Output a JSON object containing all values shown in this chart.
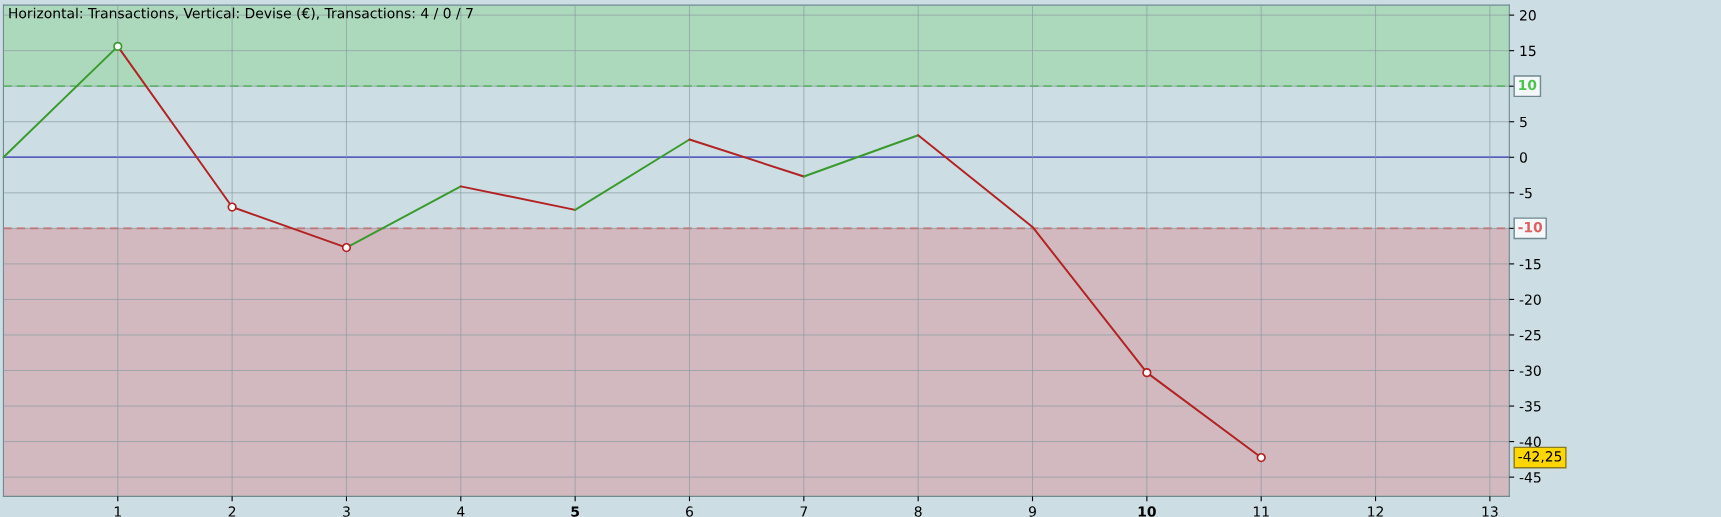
{
  "chart_data": {
    "type": "line",
    "title": "Horizontal: Transactions, Vertical: Devise (€), Transactions: 4 / 0 / 7",
    "series": [
      {
        "x": [
          0,
          1
        ],
        "values": [
          0,
          15.6
        ],
        "color": "#3a9a2e"
      },
      {
        "x": [
          1,
          2,
          3
        ],
        "values": [
          15.6,
          -7.0,
          -12.7
        ],
        "color": "#b22222"
      },
      {
        "x": [
          3,
          4
        ],
        "values": [
          -12.7,
          -4.1
        ],
        "color": "#3a9a2e"
      },
      {
        "x": [
          4,
          5
        ],
        "values": [
          -4.1,
          -7.4
        ],
        "color": "#b22222"
      },
      {
        "x": [
          5,
          6
        ],
        "values": [
          -7.4,
          2.5
        ],
        "color": "#3a9a2e"
      },
      {
        "x": [
          6,
          7
        ],
        "values": [
          2.5,
          -2.7
        ],
        "color": "#b22222"
      },
      {
        "x": [
          7,
          8
        ],
        "values": [
          -2.7,
          3.1
        ],
        "color": "#3a9a2e"
      },
      {
        "x": [
          8,
          9,
          10,
          11
        ],
        "values": [
          3.1,
          -9.8,
          -30.3,
          -42.25
        ],
        "color": "#b22222"
      },
      {
        "type": "scatter",
        "x": [
          1,
          2,
          3,
          10,
          11
        ],
        "values": [
          15.6,
          -7.0,
          -12.7,
          -30.3,
          -42.25
        ],
        "colors": [
          "#3a9a2e",
          "#b22222",
          "#b22222",
          "#b22222",
          "#b22222"
        ],
        "marker": "circle"
      }
    ],
    "xlim": [
      0,
      13.17
    ],
    "xticks": [
      1,
      2,
      3,
      4,
      5,
      6,
      7,
      8,
      9,
      10,
      11,
      12,
      13
    ],
    "ylim": [
      -47.7,
      21.4
    ],
    "yticks": [
      20,
      15,
      {
        "value": 10,
        "label": null
      },
      5,
      0,
      -5,
      {
        "value": -10,
        "label": null
      },
      -15,
      -20,
      -25,
      -30,
      -35,
      -40,
      -45
    ],
    "grid": true,
    "bands": [
      {
        "axis": "y",
        "from": 10,
        "to": 21.4,
        "color": "#acd9bc"
      },
      {
        "axis": "y",
        "from": -47.7,
        "to": -10,
        "color": "#d1b9bf"
      }
    ],
    "ref_lines": [
      {
        "axis": "y",
        "value": 10,
        "label": "10",
        "color": "#4cc44c",
        "line_style": "dashed"
      },
      {
        "axis": "y",
        "value": -10,
        "label": "-10",
        "color": "#e06060",
        "line_style": "dashed"
      },
      {
        "axis": "y",
        "value": 0,
        "color": "#2020d0",
        "line_style": "solid"
      }
    ],
    "annotations": [
      "-42,25"
    ]
  }
}
